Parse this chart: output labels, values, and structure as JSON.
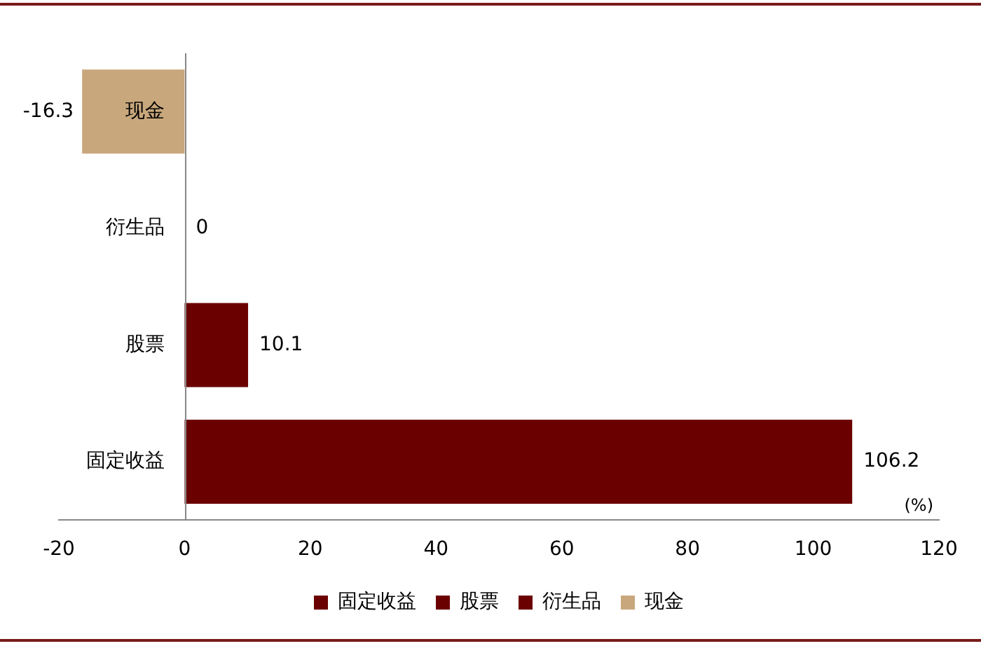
{
  "chart_data": {
    "type": "bar",
    "orientation": "horizontal",
    "categories": [
      "现金",
      "衍生品",
      "股票",
      "固定收益"
    ],
    "series": [
      {
        "name": "固定收益",
        "color": "#6b0000",
        "values": [
          null,
          null,
          null,
          106.2
        ]
      },
      {
        "name": "股票",
        "color": "#6b0000",
        "values": [
          null,
          null,
          10.1,
          null
        ]
      },
      {
        "name": "衍生品",
        "color": "#6b0000",
        "values": [
          null,
          0,
          null,
          null
        ]
      },
      {
        "name": "现金",
        "color": "#c9a77c",
        "values": [
          -16.3,
          null,
          null,
          null
        ]
      }
    ],
    "xlim": [
      -20,
      120
    ],
    "xticks": [
      -20,
      0,
      20,
      40,
      60,
      80,
      100,
      120
    ],
    "grid": false,
    "legend": "bottom",
    "data_labels": true,
    "annotations": [
      "(%)"
    ]
  }
}
